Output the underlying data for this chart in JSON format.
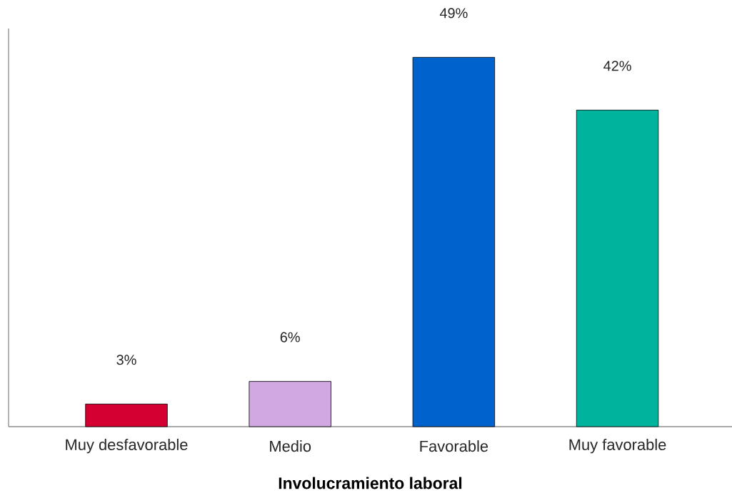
{
  "chart_data": {
    "type": "bar",
    "xlabel": "Involucramiento laboral",
    "categories": [
      "Muy desfavorable",
      "Medio",
      "Favorable",
      "Muy favorable"
    ],
    "values": [
      3,
      6,
      49,
      42
    ],
    "value_labels": [
      "3%",
      "6%",
      "49%",
      "42%"
    ],
    "colors": [
      "#d50032",
      "#d2a8e2",
      "#0062cc",
      "#00b39c"
    ]
  }
}
